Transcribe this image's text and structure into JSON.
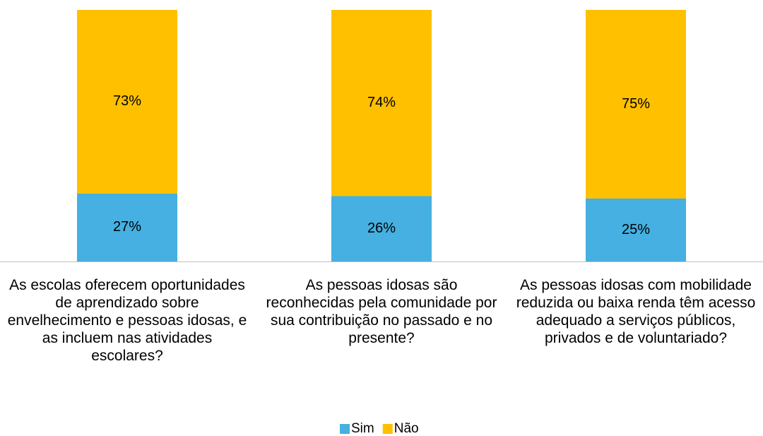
{
  "chart_data": {
    "type": "stacked_bar",
    "categories": [
      "As escolas oferecem oportunidades de aprendizado sobre envelhecimento e pessoas idosas, e as incluem nas atividades escolares?",
      "As pessoas idosas são reconhecidas pela comunidade por sua contribuição no passado e no presente?",
      "As pessoas idosas com mobilidade reduzida ou baixa renda têm acesso adequado a serviços públicos, privados e de voluntariado?"
    ],
    "series": [
      {
        "name": "Sim",
        "color": "#45b0e1",
        "values": [
          27,
          26,
          25
        ],
        "value_labels": [
          "27%",
          "26%",
          "25%"
        ]
      },
      {
        "name": "Não",
        "color": "#ffc000",
        "values": [
          73,
          74,
          75
        ],
        "value_labels": [
          "73%",
          "74%",
          "75%"
        ]
      }
    ],
    "ylim": [
      0,
      100
    ],
    "legend": "bottom"
  }
}
